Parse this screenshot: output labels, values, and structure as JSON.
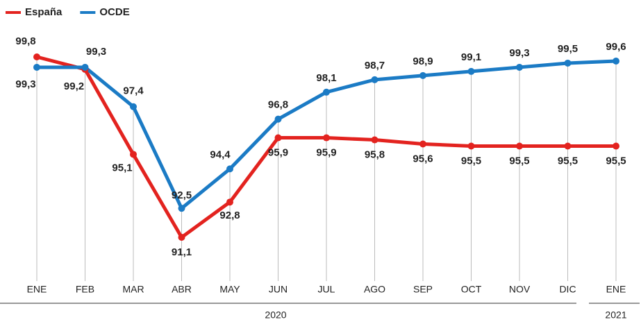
{
  "chart_data": {
    "type": "line",
    "categories": [
      "ENE",
      "FEB",
      "MAR",
      "ABR",
      "MAY",
      "JUN",
      "JUL",
      "AGO",
      "SEP",
      "OCT",
      "NOV",
      "DIC",
      "ENE"
    ],
    "groups": [
      "2020",
      "2021"
    ],
    "series": [
      {
        "name": "España",
        "color": "#e3231f",
        "values": [
          99.8,
          99.2,
          95.1,
          91.1,
          92.8,
          95.9,
          95.9,
          95.8,
          95.6,
          95.5,
          95.5,
          95.5,
          95.5
        ],
        "value_labels": [
          "99,8",
          "99,2",
          "95,1",
          "91,1",
          "92,8",
          "95,9",
          "95,9",
          "95,8",
          "95,6",
          "95,5",
          "95,5",
          "95,5",
          "95,5"
        ]
      },
      {
        "name": "OCDE",
        "color": "#1b7bc5",
        "values": [
          99.3,
          99.3,
          97.4,
          92.5,
          94.4,
          96.8,
          98.1,
          98.7,
          98.9,
          99.1,
          99.3,
          99.5,
          99.6
        ],
        "value_labels": [
          "99,3",
          "99,3",
          "97,4",
          "92,5",
          "94,4",
          "96,8",
          "98,1",
          "98,7",
          "98,9",
          "99,1",
          "99,3",
          "99,5",
          "99,6"
        ]
      }
    ]
  }
}
